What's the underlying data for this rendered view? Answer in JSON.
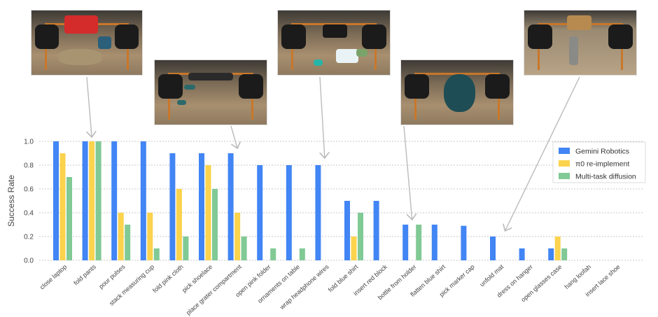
{
  "chart_data": {
    "type": "bar",
    "ylabel": "Success Rate",
    "ylim": [
      0,
      1.0
    ],
    "yticks": [
      "0.0",
      "0.2",
      "0.4",
      "0.6",
      "0.8",
      "1.0"
    ],
    "grid": "horizontal dotted",
    "legend_position": "right",
    "categories": [
      "close laptop",
      "fold pants",
      "pour pulses",
      "stack measuring cup",
      "fold pink cloth",
      "pick shoelace",
      "place grater compartment",
      "open pink folder",
      "ornaments on table",
      "wrap headphone wires",
      "fold blue shirt",
      "insert red block",
      "bottle from holder",
      "flatten blue shirt",
      "pick marker cap",
      "unfold mat",
      "dress on hanger",
      "open glasses case",
      "hang loofah",
      "insert lace shoe"
    ],
    "series": [
      {
        "name": "Gemini Robotics",
        "color": "#4285F4",
        "values": [
          1.0,
          1.0,
          1.0,
          1.0,
          0.9,
          0.9,
          0.9,
          0.8,
          0.8,
          0.8,
          0.5,
          0.5,
          0.3,
          0.3,
          0.29,
          0.2,
          0.1,
          0.1,
          0,
          0
        ]
      },
      {
        "name": "π0 re-implement",
        "color": "#FBD34D",
        "values": [
          0.9,
          1.0,
          0.4,
          0.4,
          0.6,
          0.8,
          0.4,
          0,
          0,
          0,
          0.2,
          0,
          0,
          0,
          0,
          0,
          0,
          0.2,
          0,
          0
        ]
      },
      {
        "name": "Multi-task diffusion",
        "color": "#81C995",
        "values": [
          0.7,
          1.0,
          0.3,
          0.1,
          0.2,
          0.6,
          0.2,
          0.1,
          0.1,
          0,
          0.4,
          0,
          0.3,
          0,
          0,
          0,
          0,
          0.1,
          0,
          0
        ]
      }
    ]
  },
  "photos": [
    {
      "name": "photo-fold-pants",
      "points_to": "fold pants",
      "objects": [
        "red bin",
        "mat"
      ]
    },
    {
      "name": "photo-place-grater",
      "points_to": "place grater compartment",
      "objects": [
        "tools"
      ]
    },
    {
      "name": "photo-wrap-headphone",
      "points_to": "wrap headphone wires",
      "objects": [
        "tablet",
        "wires"
      ]
    },
    {
      "name": "photo-bottle-holder",
      "points_to": "bottle from holder",
      "objects": [
        "bag"
      ]
    },
    {
      "name": "photo-unfold-mat",
      "points_to": "unfold mat",
      "objects": [
        "rolled mat",
        "tray"
      ]
    }
  ],
  "colors": {
    "grid": "#b8b8b8",
    "axis_text": "#444444",
    "arrow": "#bbbbbb"
  }
}
